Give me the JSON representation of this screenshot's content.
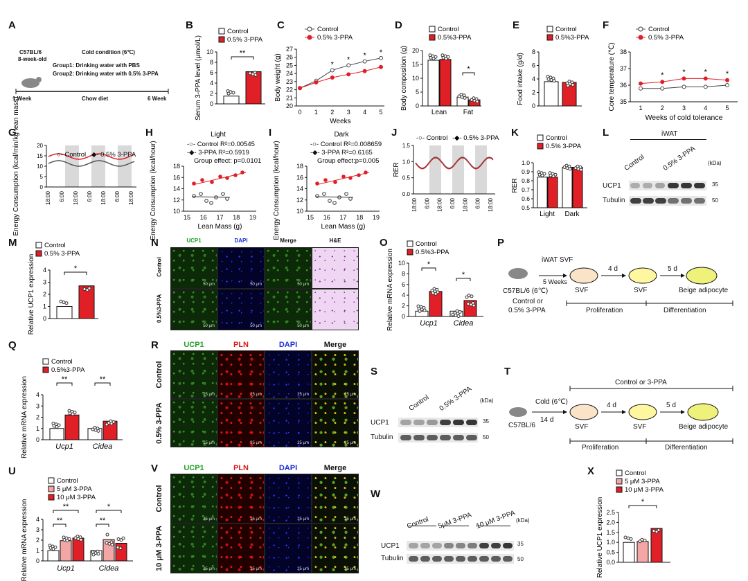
{
  "panels": {
    "A": {
      "letter": "A",
      "mouse": "C57BL/6",
      "age": "8-week-old",
      "cold": "Cold condition (6℃)",
      "group1": "Group1: Drinking water with PBS",
      "group2": "Group2: Drinking water with 0.5% 3-PPA",
      "week1": "1  Week",
      "diet": "Chow diet",
      "week6": "6 Week"
    },
    "B": {
      "letter": "B",
      "legend": [
        "Control",
        "0.5% 3-PPA"
      ],
      "ylabel": "Serum 3-PPA level (μmol/L)",
      "yticks": [
        "0",
        "2",
        "4",
        "6",
        "8",
        "10"
      ],
      "sig": "**"
    },
    "C": {
      "letter": "C",
      "legend": [
        "Control",
        "0.5% 3-PPA"
      ],
      "ylabel": "Body weight (g)",
      "xlabel": "Weeks",
      "yticks": [
        "20",
        "21",
        "22",
        "23",
        "24",
        "25",
        "26",
        "27"
      ],
      "xticks": [
        "0",
        "1",
        "2",
        "3",
        "4",
        "5"
      ],
      "sig": "*"
    },
    "D": {
      "letter": "D",
      "legend": [
        "Control",
        "0.5%3-PPA"
      ],
      "ylabel": "Body composition (g)",
      "yticks": [
        "0",
        "5",
        "10",
        "15",
        "20"
      ],
      "xticks": [
        "Lean",
        "Fat"
      ],
      "sig": "*"
    },
    "E": {
      "letter": "E",
      "legend": [
        "Control",
        "0.5%3-PPA"
      ],
      "ylabel": "Food intake (g/d)",
      "yticks": [
        "0",
        "2",
        "4",
        "6",
        "8"
      ]
    },
    "F": {
      "letter": "F",
      "legend": [
        "Control",
        "0.5% 3-PPA"
      ],
      "ylabel": "Core temperature (℃)",
      "xlabel": "Weeks of cold tolerance",
      "yticks": [
        "35",
        "36",
        "37",
        "38"
      ],
      "xticks": [
        "1",
        "2",
        "3",
        "4",
        "5"
      ],
      "sig": "*"
    },
    "G": {
      "letter": "G",
      "legend": [
        "Control",
        "0.5% 3-PPA"
      ],
      "ylabel": "Energy Consumption (kcal/min/kg lean mass)",
      "yticks": [
        "0",
        "5",
        "10",
        "15",
        "20"
      ],
      "xticks": [
        "18:00",
        "6:00",
        "18:00",
        "6:00",
        "18:00",
        "6:00",
        "18:00"
      ]
    },
    "H": {
      "letter": "H",
      "title": "Light",
      "ylabel": "Energy Consumption (kcal/hour)",
      "xlabel": "Lean Mass (g)",
      "l1": "Control  R²=0.00545",
      "l2": "3-PPA  R²=0.5919",
      "effect": "Group effect: p=0.0101",
      "yticks": [
        "10",
        "12",
        "14",
        "16",
        "18"
      ],
      "xticks": [
        "15",
        "16",
        "17",
        "18",
        "19"
      ]
    },
    "I": {
      "letter": "I",
      "title": "Dark",
      "ylabel": "Energy Consumption (kcal/hour)",
      "xlabel": "Lean Mass (g)",
      "l1": "Control  R²=0.008659",
      "l2": "3-PPA  R²=0.6165",
      "effect": "Group effect:p=0.005",
      "yticks": [
        "10",
        "12",
        "14",
        "16",
        "18"
      ],
      "xticks": [
        "15",
        "16",
        "17",
        "18",
        "19"
      ]
    },
    "J": {
      "letter": "J",
      "legend": [
        "Control",
        "0.5% 3-PPA"
      ],
      "ylabel": "RER",
      "yticks": [
        "0.0",
        "0.5",
        "1.0",
        "1.5"
      ],
      "xticks": [
        "18:00",
        "6:00",
        "18:00",
        "6:00",
        "18:00",
        "6:00",
        "18:00"
      ]
    },
    "K": {
      "letter": "K",
      "legend": [
        "Control",
        "0.5% 3-PPA"
      ],
      "ylabel": "RER",
      "yticks": [
        "0.5",
        "0.6",
        "0.7",
        "0.8",
        "0.9",
        "1.0"
      ],
      "xticks": [
        "Light",
        "Dark"
      ]
    },
    "L": {
      "letter": "L",
      "tissue": "iWAT",
      "ctrl": "Control",
      "trt": "0.5% 3-PPA",
      "kda": "(kDa)",
      "p1": "UCP1",
      "p2": "Tubulin",
      "m1": "35",
      "m2": "50"
    },
    "M": {
      "letter": "M",
      "legend": [
        "Control",
        "0.5% 3-PPA"
      ],
      "ylabel": "Relative UCP1 expression",
      "yticks": [
        "0",
        "1",
        "2",
        "3",
        "4"
      ],
      "sig": "*"
    },
    "N": {
      "letter": "N",
      "cols": [
        "UCP1",
        "DAPI",
        "Merge",
        "H&E"
      ],
      "rows": [
        "Control",
        "0.5%3-PPA"
      ],
      "scale": "50 μm"
    },
    "O": {
      "letter": "O",
      "legend": [
        "Control",
        "0.5%3-PPA"
      ],
      "ylabel": "Relative mRNA expression",
      "yticks": [
        "0",
        "2",
        "4",
        "6",
        "8",
        "10"
      ],
      "xticks": [
        "Ucp1",
        "Cidea"
      ],
      "sig": "*"
    },
    "P": {
      "letter": "P",
      "t1": "iWAT  SVF",
      "t2": "5 Weeks",
      "mouse": "C57BL/6 (6℃)",
      "t3": "Control or",
      "t4": "0.5% 3-PPA",
      "d1": "4 d",
      "d2": "5 d",
      "s1": "SVF",
      "s2": "SVF",
      "s3": "Beige adipocyte",
      "ph1": "Proliferation",
      "ph2": "Differentiation"
    },
    "Q": {
      "letter": "Q",
      "legend": [
        "Control",
        "0.5%3-PPA"
      ],
      "ylabel": "Relative mRNA expression",
      "yticks": [
        "0",
        "1",
        "2",
        "3",
        "4"
      ],
      "xticks": [
        "Ucp1",
        "Cidea"
      ],
      "sig": "**"
    },
    "R": {
      "letter": "R",
      "cols": [
        "UCP1",
        "PLN",
        "DAPI",
        "Merge"
      ],
      "rows": [
        "Control",
        "0.5% 3-PPA"
      ],
      "scale": "25 μm"
    },
    "S": {
      "letter": "S",
      "ctrl": "Control",
      "trt": "0.5% 3-PPA",
      "kda": "(kDa)",
      "p1": "UCP1",
      "p2": "Tubulin",
      "m1": "35",
      "m2": "50"
    },
    "T": {
      "letter": "T",
      "top": "Control or 3-PPA",
      "cold": "Cold (6℃)",
      "d0": "14 d",
      "mouse": "C57BL/6",
      "d1": "4 d",
      "d2": "5 d",
      "s1": "SVF",
      "s2": "SVF",
      "s3": "Beige adipocyte",
      "ph1": "Proliferation",
      "ph2": "Differentiation"
    },
    "U": {
      "letter": "U",
      "legend": [
        "Control",
        "5 μM 3-PPA",
        "10 μM 3-PPA"
      ],
      "ylabel": "Relative mRNA expression",
      "yticks": [
        "0",
        "1",
        "2",
        "3",
        "4"
      ],
      "xticks": [
        "Ucp1",
        "Cidea"
      ],
      "sig1": "**",
      "sig2": "*"
    },
    "V": {
      "letter": "V",
      "cols": [
        "UCP1",
        "PLN",
        "DAPI",
        "Merge"
      ],
      "rows": [
        "Control",
        "10 μM 3-PPA"
      ],
      "scale": "25 μm"
    },
    "W": {
      "letter": "W",
      "g1": "Control",
      "g2": "5μM 3-PPA",
      "g3": "10 μM 3-PPA",
      "kda": "(kDa)",
      "p1": "UCP1",
      "p2": "Tubulin",
      "m1": "35",
      "m2": "50"
    },
    "X": {
      "letter": "X",
      "legend": [
        "Control",
        "5 μM 3-PPA",
        "10 μM 3-PPA"
      ],
      "ylabel": "Relative UCP1 expression",
      "yticks": [
        "0.0",
        "0.5",
        "1.0",
        "1.5",
        "2.0",
        "2.5"
      ],
      "sig": "*"
    }
  },
  "colors": {
    "control": "#ffffff",
    "treatment": "#e01f26",
    "light_red": "#f4a5a5",
    "mid_red": "#ee6b6b",
    "axis": "#111111"
  },
  "chart_data": [
    {
      "panel": "B",
      "type": "bar",
      "categories": [
        "Control",
        "0.5% 3-PPA"
      ],
      "values": [
        1.5,
        6.2
      ],
      "ylim": [
        0,
        10
      ]
    },
    {
      "panel": "C",
      "type": "line",
      "x": [
        0,
        1,
        2,
        3,
        4,
        5
      ],
      "series": [
        {
          "name": "Control",
          "values": [
            22.2,
            23.1,
            24.4,
            25.0,
            25.5,
            25.9
          ]
        },
        {
          "name": "0.5% 3-PPA",
          "values": [
            22.2,
            22.9,
            23.5,
            23.9,
            24.3,
            24.8
          ]
        }
      ],
      "ylim": [
        20,
        27
      ]
    },
    {
      "panel": "D",
      "type": "bar",
      "categories": [
        "Lean",
        "Fat"
      ],
      "series": [
        {
          "name": "Control",
          "values": [
            16.5,
            3.2
          ]
        },
        {
          "name": "0.5%3-PPA",
          "values": [
            16.8,
            2.2
          ]
        }
      ],
      "ylim": [
        0,
        20
      ]
    },
    {
      "panel": "E",
      "type": "bar",
      "categories": [
        "Control",
        "0.5%3-PPA"
      ],
      "values": [
        3.6,
        3.5
      ],
      "ylim": [
        0,
        8
      ]
    },
    {
      "panel": "F",
      "type": "line",
      "x": [
        1,
        2,
        3,
        4,
        5
      ],
      "series": [
        {
          "name": "Control",
          "values": [
            35.8,
            35.8,
            35.9,
            35.9,
            36.0
          ]
        },
        {
          "name": "0.5% 3-PPA",
          "values": [
            36.1,
            36.2,
            36.4,
            36.4,
            36.3
          ]
        }
      ],
      "ylim": [
        35,
        38
      ]
    },
    {
      "panel": "M",
      "type": "bar",
      "categories": [
        "Control",
        "0.5% 3-PPA"
      ],
      "values": [
        1.0,
        2.7
      ],
      "ylim": [
        0,
        4
      ]
    },
    {
      "panel": "O",
      "type": "bar",
      "categories": [
        "Ucp1",
        "Cidea"
      ],
      "series": [
        {
          "name": "Control",
          "values": [
            1.0,
            1.0
          ]
        },
        {
          "name": "0.5%3-PPA",
          "values": [
            4.7,
            3.0
          ]
        }
      ],
      "ylim": [
        0,
        10
      ]
    },
    {
      "panel": "Q",
      "type": "bar",
      "categories": [
        "Ucp1",
        "Cidea"
      ],
      "series": [
        {
          "name": "Control",
          "values": [
            1.0,
            1.0
          ]
        },
        {
          "name": "0.5%3-PPA",
          "values": [
            2.2,
            1.65
          ]
        }
      ],
      "ylim": [
        0,
        4
      ]
    },
    {
      "panel": "U",
      "type": "bar",
      "categories": [
        "Ucp1",
        "Cidea"
      ],
      "series": [
        {
          "name": "Control",
          "values": [
            1.0,
            1.0
          ]
        },
        {
          "name": "5 μM 3-PPA",
          "values": [
            1.95,
            2.05
          ]
        },
        {
          "name": "10 μM 3-PPA",
          "values": [
            2.2,
            1.7
          ]
        }
      ],
      "ylim": [
        0,
        4
      ]
    },
    {
      "panel": "X",
      "type": "bar",
      "categories": [
        "Control",
        "5 μM 3-PPA",
        "10 μM 3-PPA"
      ],
      "values": [
        1.0,
        1.05,
        1.7
      ],
      "ylim": [
        0,
        2.5
      ]
    },
    {
      "panel": "K",
      "type": "bar",
      "categories": [
        "Light",
        "Dark"
      ],
      "series": [
        {
          "name": "Control",
          "values": [
            0.84,
            0.95
          ]
        },
        {
          "name": "0.5% 3-PPA",
          "values": [
            0.84,
            0.95
          ]
        }
      ],
      "ylim": [
        0.5,
        1.0
      ]
    }
  ]
}
